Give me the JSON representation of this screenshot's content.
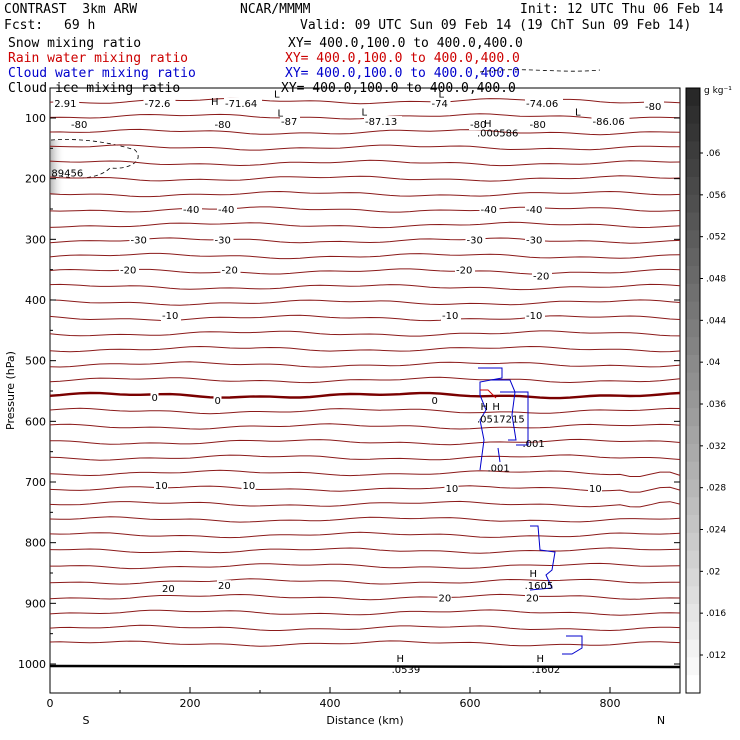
{
  "header": {
    "model": "CONTRAST  3km ARW",
    "center": "NCAR/MMMM",
    "init": "Init: 12 UTC Thu 06 Feb 14",
    "fcst_label": "Fcst:",
    "fcst_value": "69 h",
    "valid": "Valid: 09 UTC Sun 09 Feb 14 (19 ChT Sun 09 Feb 14)"
  },
  "fields": [
    {
      "name": "Snow mixing ratio",
      "xy": "XY= 400.0,100.0 to 400.0,400.0",
      "color": "#000000"
    },
    {
      "name": "Rain water mixing ratio",
      "xy": "XY= 400.0,100.0 to 400.0,400.0",
      "color": "#cc0000"
    },
    {
      "name": "Cloud water mixing ratio",
      "xy": "XY= 400.0,100.0 to 400.0,400.0",
      "color": "#0000cc"
    },
    {
      "name": "Cloud ice mixing ratio",
      "xy": "XY= 400.0,100.0 to 400.0,400.0",
      "color": "#000000"
    }
  ],
  "chart_data": {
    "type": "cross-section",
    "xlabel": "Distance (km)",
    "ylabel": "Pressure (hPa)",
    "xlim": [
      0,
      900
    ],
    "ylim": [
      1050,
      50
    ],
    "xticks": [
      0,
      200,
      400,
      600,
      800
    ],
    "yticks": [
      100,
      200,
      300,
      400,
      500,
      600,
      700,
      800,
      900,
      1000
    ],
    "x_end_labels": {
      "left": "S",
      "right": "N"
    },
    "temperature_labels": [
      {
        "x": 6,
        "p": 75,
        "text": "2.91"
      },
      {
        "x": 135,
        "p": 75,
        "text": "-72.6"
      },
      {
        "x": 250,
        "p": 75,
        "text": "-71.64"
      },
      {
        "x": 545,
        "p": 75,
        "text": "-74"
      },
      {
        "x": 680,
        "p": 75,
        "text": "-74.06"
      },
      {
        "x": 850,
        "p": 80,
        "text": "-80"
      },
      {
        "x": 30,
        "p": 110,
        "text": "-80"
      },
      {
        "x": 235,
        "p": 110,
        "text": "-80"
      },
      {
        "x": 330,
        "p": 105,
        "text": "-87"
      },
      {
        "x": 450,
        "p": 105,
        "text": "-87.13"
      },
      {
        "x": 600,
        "p": 110,
        "text": "-80"
      },
      {
        "x": 685,
        "p": 110,
        "text": "-80"
      },
      {
        "x": 775,
        "p": 105,
        "text": "-86.06"
      },
      {
        "x": 190,
        "p": 250,
        "text": "-40"
      },
      {
        "x": 240,
        "p": 250,
        "text": "-40"
      },
      {
        "x": 615,
        "p": 250,
        "text": "-40"
      },
      {
        "x": 680,
        "p": 250,
        "text": "-40"
      },
      {
        "x": 115,
        "p": 300,
        "text": "-30"
      },
      {
        "x": 235,
        "p": 300,
        "text": "-30"
      },
      {
        "x": 595,
        "p": 300,
        "text": "-30"
      },
      {
        "x": 680,
        "p": 300,
        "text": "-30"
      },
      {
        "x": 100,
        "p": 350,
        "text": "-20"
      },
      {
        "x": 245,
        "p": 350,
        "text": "-20"
      },
      {
        "x": 580,
        "p": 350,
        "text": "-20"
      },
      {
        "x": 690,
        "p": 360,
        "text": "-20"
      },
      {
        "x": 160,
        "p": 425,
        "text": "-10"
      },
      {
        "x": 560,
        "p": 425,
        "text": "-10"
      },
      {
        "x": 680,
        "p": 425,
        "text": "-10"
      },
      {
        "x": 145,
        "p": 560,
        "text": "0"
      },
      {
        "x": 235,
        "p": 565,
        "text": "0"
      },
      {
        "x": 545,
        "p": 565,
        "text": "0"
      },
      {
        "x": 150,
        "p": 705,
        "text": "10"
      },
      {
        "x": 275,
        "p": 705,
        "text": "10"
      },
      {
        "x": 565,
        "p": 710,
        "text": "10"
      },
      {
        "x": 770,
        "p": 710,
        "text": "10"
      },
      {
        "x": 160,
        "p": 875,
        "text": "20"
      },
      {
        "x": 240,
        "p": 870,
        "text": "20"
      },
      {
        "x": 555,
        "p": 890,
        "text": "20"
      },
      {
        "x": 680,
        "p": 890,
        "text": "20"
      }
    ],
    "extrema_labels": [
      {
        "x": 230,
        "p": 72,
        "text": "H",
        "color": "#7a0000"
      },
      {
        "x": 325,
        "p": 91,
        "text": "L",
        "color": "#7a0000"
      },
      {
        "x": 445,
        "p": 89,
        "text": "L",
        "color": "#7a0000"
      },
      {
        "x": 320,
        "p": 60,
        "text": "L",
        "color": "#7a0000"
      },
      {
        "x": 555,
        "p": 60,
        "text": "L",
        "color": "#7a0000"
      },
      {
        "x": 750,
        "p": 89,
        "text": "L",
        "color": "#7a0000"
      },
      {
        "x": 620,
        "p": 108,
        "text": "H",
        "color": "#000000"
      },
      {
        "x": 610,
        "p": 124,
        "text": ".000586",
        "color": "#000000"
      },
      {
        "x": 2,
        "p": 190,
        "text": "89456",
        "color": "#000000"
      },
      {
        "x": 615,
        "p": 575,
        "text": "H",
        "color": "#cc0000"
      },
      {
        "x": 610,
        "p": 595,
        "text": ".0517215",
        "color": "#cc0000"
      },
      {
        "x": 632,
        "p": 575,
        "text": "H",
        "color": "#0000cc"
      },
      {
        "x": 675,
        "p": 636,
        "text": ".001",
        "color": "#0000cc"
      },
      {
        "x": 625,
        "p": 676,
        "text": ".001",
        "color": "#0000cc"
      },
      {
        "x": 685,
        "p": 850,
        "text": "H",
        "color": "#0000cc"
      },
      {
        "x": 678,
        "p": 870,
        "text": ".1605",
        "color": "#0000cc"
      },
      {
        "x": 495,
        "p": 990,
        "text": "H",
        "color": "#0000cc"
      },
      {
        "x": 488,
        "p": 1008,
        "text": ".0539",
        "color": "#0000cc"
      },
      {
        "x": 695,
        "p": 990,
        "text": "H",
        "color": "#0000cc"
      },
      {
        "x": 688,
        "p": 1008,
        "text": ".1602",
        "color": "#0000cc"
      }
    ],
    "colorbar": {
      "unit": "g kg⁻¹",
      "labels": [
        ".06",
        ".056",
        ".052",
        ".048",
        ".044",
        ".04",
        ".036",
        ".032",
        ".028",
        ".024",
        ".02",
        ".016",
        ".012"
      ]
    }
  }
}
